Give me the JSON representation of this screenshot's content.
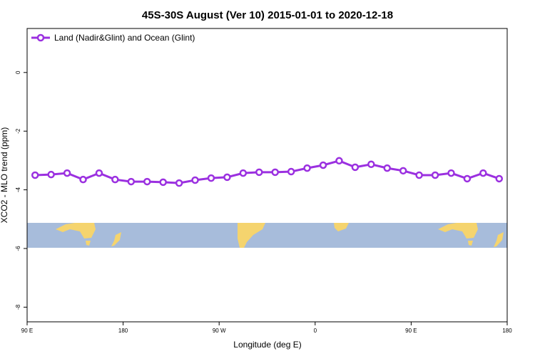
{
  "chart_data": {
    "type": "line",
    "title": "45S-30S August (Ver 10)   2015-01-01 to 2020-12-18",
    "xlabel": "Longitude (deg E)",
    "ylabel": "XCO2 - MLO trend (ppm)",
    "x": [
      97.5,
      112.5,
      127.5,
      142.5,
      157.5,
      172.5,
      187.5,
      202.5,
      217.5,
      232.5,
      247.5,
      262.5,
      277.5,
      292.5,
      307.5,
      322.5,
      337.5,
      352.5,
      367.5,
      382.5,
      397.5,
      412.5,
      427.5,
      442.5,
      457.5,
      472.5,
      487.5,
      502.5,
      517.5,
      532.5
    ],
    "series": [
      {
        "name": "Land (Nadir&Glint) and Ocean (Glint)",
        "color": "#9b30e0",
        "values": [
          -3.5,
          -3.48,
          -3.43,
          -3.65,
          -3.43,
          -3.65,
          -3.72,
          -3.72,
          -3.74,
          -3.77,
          -3.67,
          -3.6,
          -3.57,
          -3.43,
          -3.4,
          -3.4,
          -3.38,
          -3.26,
          -3.16,
          -3.01,
          -3.23,
          -3.13,
          -3.26,
          -3.35,
          -3.5,
          -3.5,
          -3.43,
          -3.62,
          -3.43,
          -3.62
        ]
      }
    ],
    "xlim": [
      90,
      540
    ],
    "xticks": [
      {
        "value": 90,
        "label": "90 E"
      },
      {
        "value": 180,
        "label": "180"
      },
      {
        "value": 270,
        "label": "90 W"
      },
      {
        "value": 360,
        "label": "0"
      },
      {
        "value": 450,
        "label": "90 E"
      },
      {
        "value": 540,
        "label": "180"
      }
    ],
    "ylim": [
      -8.5,
      1.5
    ],
    "yticks": [
      0,
      -2,
      -4,
      -6,
      -8
    ],
    "legend": "top-left"
  }
}
